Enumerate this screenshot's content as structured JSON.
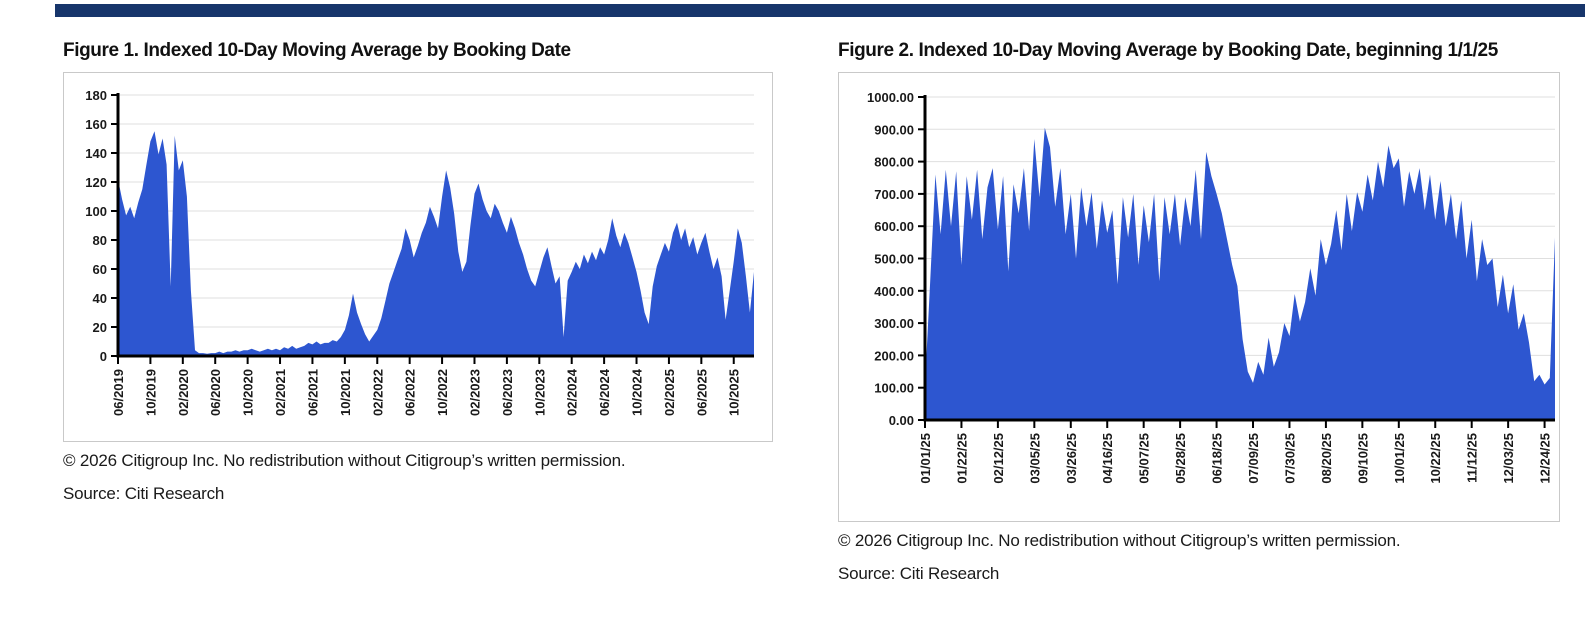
{
  "colors": {
    "top_bar": "#17356b",
    "area_fill": "#2d56d0",
    "axis": "#000000",
    "gridline": "#dfdfdf",
    "box_border": "#c9c9c9"
  },
  "figures": [
    {
      "title": "Figure 1. Indexed 10-Day Moving Average by Booking Date",
      "copyright": "© 2026 Citigroup Inc. No redistribution without Citigroup’s written permission.",
      "source": "Source: Citi Research"
    },
    {
      "title": "Figure 2. Indexed 10-Day Moving Average by Booking Date, beginning 1/1/25",
      "copyright": "© 2026 Citigroup Inc. No redistribution without Citigroup’s written permission.",
      "source": "Source: Citi Research"
    }
  ],
  "chart_data": [
    {
      "type": "area",
      "title": "Figure 1. Indexed 10-Day Moving Average by Booking Date",
      "xlabel": "",
      "ylabel": "",
      "ylim": [
        0,
        180
      ],
      "grid": true,
      "legend_position": "none",
      "y_tick_values": [
        0,
        20,
        40,
        60,
        80,
        100,
        120,
        140,
        160,
        180
      ],
      "y_tick_labels": [
        "0",
        "20",
        "40",
        "60",
        "80",
        "100",
        "120",
        "140",
        "160",
        "180"
      ],
      "x_tick_labels": [
        "06/2019",
        "10/2019",
        "02/2020",
        "06/2020",
        "10/2020",
        "02/2021",
        "06/2021",
        "10/2021",
        "02/2022",
        "06/2022",
        "10/2022",
        "02/2023",
        "06/2023",
        "10/2023",
        "02/2024",
        "06/2024",
        "10/2024",
        "02/2025",
        "06/2025",
        "10/2025"
      ],
      "x_tick_every": 8,
      "x_note": "values sampled twice per month from 06/2019 through 12/2025",
      "series": [
        {
          "values": [
            122,
            108,
            97,
            103,
            95,
            106,
            115,
            132,
            148,
            155,
            139,
            150,
            132,
            48,
            152,
            128,
            135,
            110,
            45,
            4,
            2,
            2,
            1.5,
            2,
            2,
            3,
            2,
            3,
            3,
            4,
            3,
            4,
            4,
            5,
            4,
            3,
            4,
            5,
            4,
            5,
            4,
            6,
            5,
            7,
            5,
            6,
            7,
            9,
            8,
            10,
            8,
            9,
            9,
            11,
            10,
            13,
            18,
            28,
            43,
            30,
            22,
            15,
            10,
            14,
            18,
            26,
            38,
            50,
            58,
            66,
            74,
            88,
            80,
            68,
            76,
            85,
            92,
            103,
            96,
            88,
            110,
            128,
            116,
            98,
            72,
            58,
            65,
            90,
            112,
            119,
            108,
            100,
            95,
            105,
            100,
            92,
            85,
            96,
            88,
            78,
            70,
            60,
            52,
            48,
            58,
            68,
            75,
            62,
            50,
            55,
            13,
            52,
            58,
            65,
            60,
            70,
            64,
            72,
            66,
            75,
            70,
            80,
            95,
            83,
            75,
            85,
            78,
            68,
            58,
            45,
            30,
            22,
            48,
            62,
            70,
            78,
            72,
            85,
            92,
            80,
            88,
            75,
            82,
            70,
            78,
            85,
            72,
            60,
            68,
            55,
            25,
            45,
            65,
            88,
            78,
            55,
            30,
            58
          ]
        }
      ]
    },
    {
      "type": "area",
      "title": "Figure 2. Indexed 10-Day Moving Average by Booking Date, beginning 1/1/25",
      "xlabel": "",
      "ylabel": "",
      "ylim": [
        0,
        1000
      ],
      "grid": true,
      "legend_position": "none",
      "y_tick_values": [
        0,
        100,
        200,
        300,
        400,
        500,
        600,
        700,
        800,
        900,
        1000
      ],
      "y_tick_labels": [
        "0.00",
        "100.00",
        "200.00",
        "300.00",
        "400.00",
        "500.00",
        "600.00",
        "700.00",
        "800.00",
        "900.00",
        "1000.00"
      ],
      "x_tick_labels": [
        "01/01/25",
        "01/22/25",
        "02/12/25",
        "03/05/25",
        "03/26/25",
        "04/16/25",
        "05/07/25",
        "05/28/25",
        "06/18/25",
        "07/09/25",
        "07/30/25",
        "08/20/25",
        "09/10/25",
        "10/01/25",
        "10/22/25",
        "11/12/25",
        "12/03/25",
        "12/24/25"
      ],
      "x_tick_every": 7,
      "x_note": "values sampled every 3 days from 01/01/25 through 12/31/25",
      "series": [
        {
          "values": [
            110,
            430,
            760,
            575,
            775,
            600,
            770,
            480,
            755,
            620,
            775,
            560,
            720,
            780,
            590,
            755,
            460,
            730,
            640,
            780,
            585,
            870,
            690,
            905,
            845,
            660,
            780,
            575,
            700,
            500,
            720,
            600,
            705,
            530,
            680,
            580,
            650,
            420,
            690,
            565,
            700,
            480,
            665,
            550,
            700,
            430,
            690,
            575,
            700,
            540,
            690,
            600,
            775,
            560,
            830,
            755,
            700,
            640,
            560,
            480,
            415,
            250,
            150,
            115,
            180,
            140,
            255,
            165,
            210,
            300,
            260,
            390,
            305,
            365,
            470,
            385,
            560,
            480,
            545,
            650,
            525,
            700,
            585,
            705,
            645,
            760,
            680,
            800,
            720,
            850,
            780,
            810,
            660,
            770,
            700,
            780,
            650,
            760,
            620,
            740,
            600,
            700,
            560,
            680,
            500,
            620,
            430,
            560,
            480,
            500,
            350,
            450,
            330,
            420,
            280,
            330,
            240,
            120,
            140,
            110,
            130,
            565
          ]
        }
      ]
    }
  ]
}
